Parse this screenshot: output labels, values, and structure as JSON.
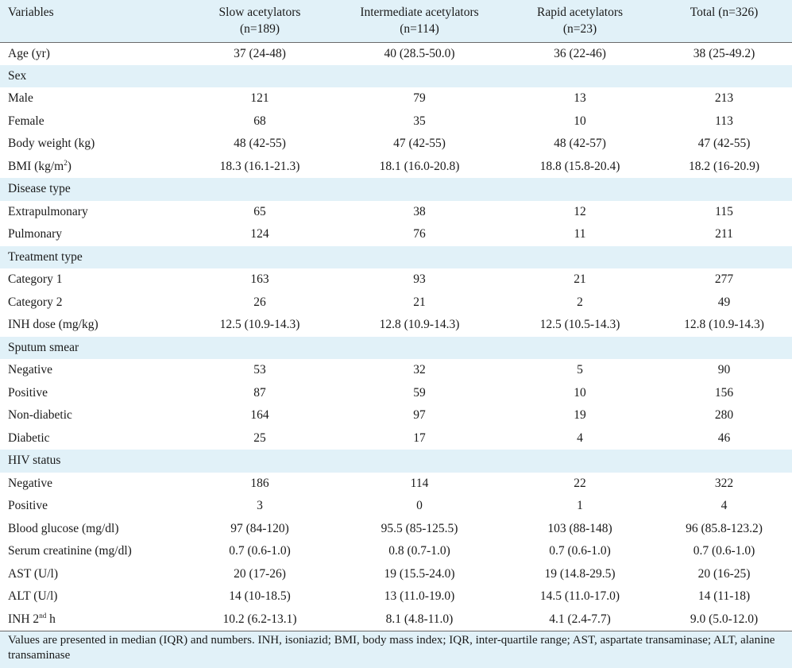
{
  "headers": [
    {
      "line1": "Variables",
      "line2": ""
    },
    {
      "line1": "Slow acetylators",
      "line2": "(n=189)"
    },
    {
      "line1": "Intermediate acetylators",
      "line2": "(n=114)"
    },
    {
      "line1": "Rapid acetylators",
      "line2": "(n=23)"
    },
    {
      "line1": "Total (n=326)",
      "line2": ""
    }
  ],
  "rows": [
    {
      "type": "data",
      "label": "Age (yr)",
      "values": [
        "37 (24-48)",
        "40 (28.5-50.0)",
        "36 (22-46)",
        "38 (25-49.2)"
      ]
    },
    {
      "type": "section",
      "label": "Sex"
    },
    {
      "type": "data",
      "label": "Male",
      "values": [
        "121",
        "79",
        "13",
        "213"
      ]
    },
    {
      "type": "data",
      "label": "Female",
      "values": [
        "68",
        "35",
        "10",
        "113"
      ]
    },
    {
      "type": "data",
      "label": "Body weight (kg)",
      "values": [
        "48 (42-55)",
        "47 (42-55)",
        "48 (42-57)",
        "47 (42-55)"
      ]
    },
    {
      "type": "data",
      "label": "BMI (kg/m",
      "sup": "2",
      "label_after": ")",
      "values": [
        "18.3 (16.1-21.3)",
        "18.1 (16.0-20.8)",
        "18.8 (15.8-20.4)",
        "18.2 (16-20.9)"
      ]
    },
    {
      "type": "section",
      "label": "Disease type"
    },
    {
      "type": "data",
      "label": "Extrapulmonary",
      "values": [
        "65",
        "38",
        "12",
        "115"
      ]
    },
    {
      "type": "data",
      "label": "Pulmonary",
      "values": [
        "124",
        "76",
        "11",
        "211"
      ]
    },
    {
      "type": "section",
      "label": "Treatment type"
    },
    {
      "type": "data",
      "label": "Category 1",
      "values": [
        "163",
        "93",
        "21",
        "277"
      ]
    },
    {
      "type": "data",
      "label": "Category 2",
      "values": [
        "26",
        "21",
        "2",
        "49"
      ]
    },
    {
      "type": "data",
      "label": "INH dose (mg/kg)",
      "values": [
        "12.5 (10.9-14.3)",
        "12.8 (10.9-14.3)",
        "12.5 (10.5-14.3)",
        "12.8 (10.9-14.3)"
      ]
    },
    {
      "type": "section",
      "label": "Sputum smear"
    },
    {
      "type": "data",
      "label": "Negative",
      "values": [
        "53",
        "32",
        "5",
        "90"
      ]
    },
    {
      "type": "data",
      "label": "Positive",
      "values": [
        "87",
        "59",
        "10",
        "156"
      ]
    },
    {
      "type": "data",
      "label": "Non-diabetic",
      "values": [
        "164",
        "97",
        "19",
        "280"
      ]
    },
    {
      "type": "data",
      "label": "Diabetic",
      "values": [
        "25",
        "17",
        "4",
        "46"
      ]
    },
    {
      "type": "section",
      "label": "HIV status"
    },
    {
      "type": "data",
      "label": "Negative",
      "values": [
        "186",
        "114",
        "22",
        "322"
      ]
    },
    {
      "type": "data",
      "label": "Positive",
      "values": [
        "3",
        "0",
        "1",
        "4"
      ]
    },
    {
      "type": "data",
      "label": "Blood glucose (mg/dl)",
      "values": [
        "97 (84-120)",
        "95.5 (85-125.5)",
        "103 (88-148)",
        "96 (85.8-123.2)"
      ]
    },
    {
      "type": "data",
      "label": "Serum creatinine (mg/dl)",
      "values": [
        "0.7 (0.6-1.0)",
        "0.8 (0.7-1.0)",
        "0.7 (0.6-1.0)",
        "0.7 (0.6-1.0)"
      ]
    },
    {
      "type": "data",
      "label": "AST (U/l)",
      "values": [
        "20 (17-26)",
        "19 (15.5-24.0)",
        "19 (14.8-29.5)",
        "20 (16-25)"
      ]
    },
    {
      "type": "data",
      "label": "ALT (U/l)",
      "values": [
        "14 (10-18.5)",
        "13 (11.0-19.0)",
        "14.5 (11.0-17.0)",
        "14 (11-18)"
      ]
    },
    {
      "type": "data",
      "label": "INH 2",
      "sup": "nd",
      "label_after": " h",
      "values": [
        "10.2 (6.2-13.1)",
        "8.1 (4.8-11.0)",
        "4.1 (2.4-7.7)",
        "9.0 (5.0-12.0)"
      ]
    }
  ],
  "footnote": "Values are presented in median (IQR) and numbers. INH, isoniazid; BMI, body mass index; IQR, inter-quartile range; AST, aspartate transaminase; ALT, alanine transaminase",
  "colors": {
    "band": "#e1f1f8",
    "rule": "#6a6a6a",
    "text": "#1a1a1a"
  }
}
